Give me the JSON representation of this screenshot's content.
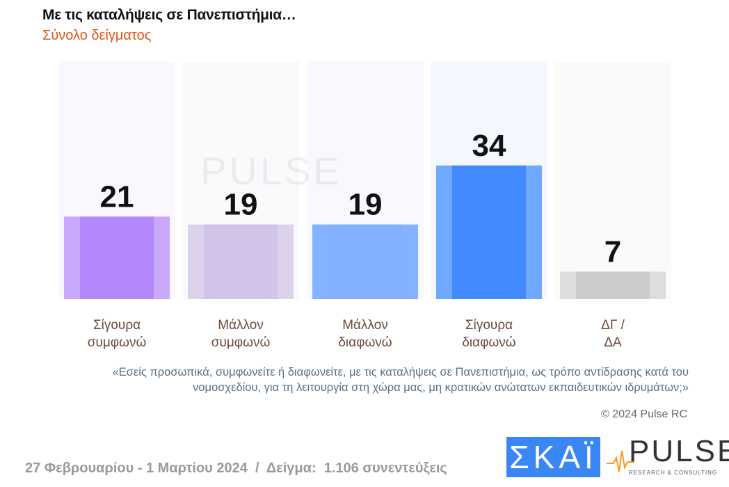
{
  "title": "Με τις καταλήψεις σε Πανεπιστήμια…",
  "subtitle": "Σύνολο δείγματος",
  "chart_data": {
    "type": "bar",
    "categories": [
      [
        "Σίγουρα",
        "συμφωνώ"
      ],
      [
        "Μάλλον",
        "συμφωνώ"
      ],
      [
        "Μάλλον",
        "διαφωνώ"
      ],
      [
        "Σίγουρα",
        "διαφωνώ"
      ],
      [
        "ΔΓ /",
        "ΔΑ"
      ]
    ],
    "values": [
      21,
      19,
      19,
      34,
      7
    ],
    "colors": [
      {
        "outer": "#c9a9fb",
        "inner": "#b388fb",
        "panel": "#faf7fe"
      },
      {
        "outer": "#ddd2ec",
        "inner": "#d1c4e8",
        "panel": "#fafafd"
      },
      {
        "outer": "#85b2ff",
        "inner": "#82b0ff",
        "panel": "#f8f9fe"
      },
      {
        "outer": "#70a7ff",
        "inner": "#448aff",
        "panel": "#f4f8fe"
      },
      {
        "outer": "#dddddd",
        "inner": "#cccccc",
        "panel": "#fafafa"
      }
    ],
    "ylim": [
      0,
      50
    ]
  },
  "question": "«Εσείς προσωπικά, συμφωνείτε ή διαφωνείτε, με τις καταλήψεις σε Πανεπιστήμια, ως τρόπο αντίδρασης κατά του νομοσχεδίου, για τη λειτουργία στη χώρα μας, μη κρατικών ανώτατων εκπαιδευτικών ιδρυμάτων;»",
  "copyright": "© 2024 Pulse RC",
  "footer": "27 Φεβρουαρίου - 1 Μαρτίου 2024  /  Δείγμα:  1.106 συνεντεύξεις",
  "logos": {
    "skai": "ΣΚΑΪ",
    "pulse": "PULSE",
    "pulse_sub": "RESEARCH & CONSULTING",
    "watermark": "PULSE"
  }
}
